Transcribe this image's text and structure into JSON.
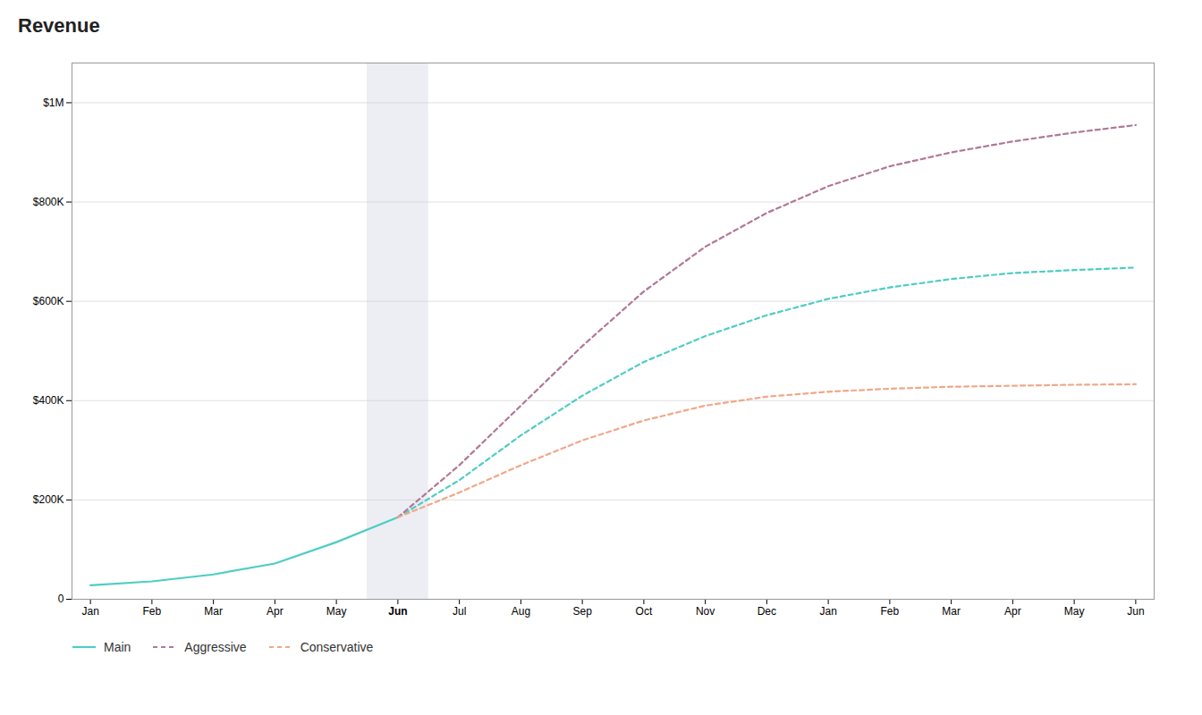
{
  "chart_data": {
    "type": "line",
    "title": "Revenue",
    "categories": [
      "Jan",
      "Feb",
      "Mar",
      "Apr",
      "May",
      "Jun",
      "Jul",
      "Aug",
      "Sep",
      "Oct",
      "Nov",
      "Dec",
      "Jan",
      "Feb",
      "Mar",
      "Apr",
      "May",
      "Jun"
    ],
    "series": [
      {
        "name": "Main",
        "color": "#4ecdc4",
        "line_style": "solid",
        "values": [
          28000,
          36000,
          50000,
          72000,
          115000,
          165000,
          240000,
          330000,
          410000,
          478000,
          530000,
          572000,
          605000,
          628000,
          645000,
          657000,
          663000,
          668000
        ]
      },
      {
        "name": "Aggressive",
        "color": "#b07898",
        "line_style": "dashed",
        "values": [
          null,
          null,
          null,
          null,
          null,
          165000,
          270000,
          390000,
          510000,
          620000,
          710000,
          778000,
          832000,
          872000,
          900000,
          922000,
          940000,
          955000
        ]
      },
      {
        "name": "Conservative",
        "color": "#f0a888",
        "line_style": "dashed",
        "values": [
          null,
          null,
          null,
          null,
          null,
          165000,
          215000,
          270000,
          320000,
          360000,
          390000,
          408000,
          418000,
          424000,
          428000,
          430000,
          432000,
          433000
        ]
      }
    ],
    "ylim": [
      0,
      1080000
    ],
    "yticks": [
      0,
      {
        "value": 200000,
        "label": "$200K"
      },
      {
        "value": 400000,
        "label": "$400K"
      },
      {
        "value": 600000,
        "label": "$600K"
      },
      {
        "value": 800000,
        "label": "$800K"
      },
      {
        "value": 1000000,
        "label": "$1M"
      }
    ],
    "grid": true
  }
}
